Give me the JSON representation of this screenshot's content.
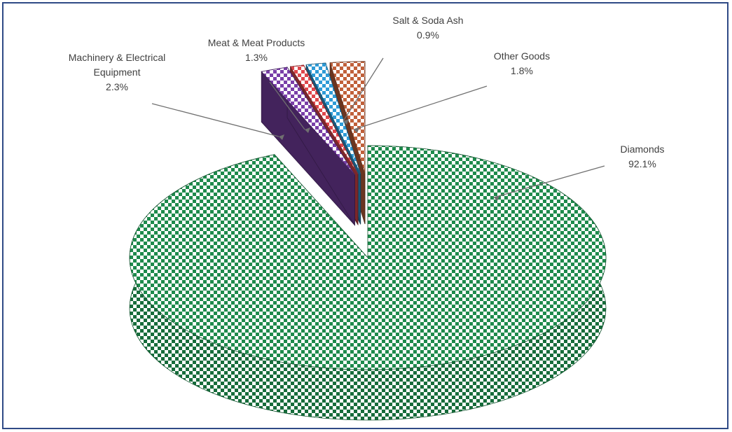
{
  "chart_data": {
    "type": "pie",
    "style": "3d exploded pie with patterned fills",
    "series": [
      {
        "name": "",
        "slices": [
          {
            "label": "Diamonds",
            "value": 92.1,
            "display": "92.1%",
            "color": "#1e8a4c"
          },
          {
            "label": "Machinery & Electrical Equipment",
            "label_lines": [
              "Machinery & Electrical",
              "Equipment"
            ],
            "value": 2.3,
            "display": "2.3%",
            "color": "#c0603a"
          },
          {
            "label": "Meat & Meat Products",
            "value": 1.3,
            "display": "1.3%",
            "color": "#2e9bd6"
          },
          {
            "label": "Salt & Soda Ash",
            "value": 0.9,
            "display": "0.9%",
            "color": "#e0474c"
          },
          {
            "label": "Other Goods",
            "value": 1.8,
            "display": "1.8%",
            "color": "#7a3fa8"
          }
        ]
      }
    ],
    "legend": "none (data labels with leader lines)"
  }
}
